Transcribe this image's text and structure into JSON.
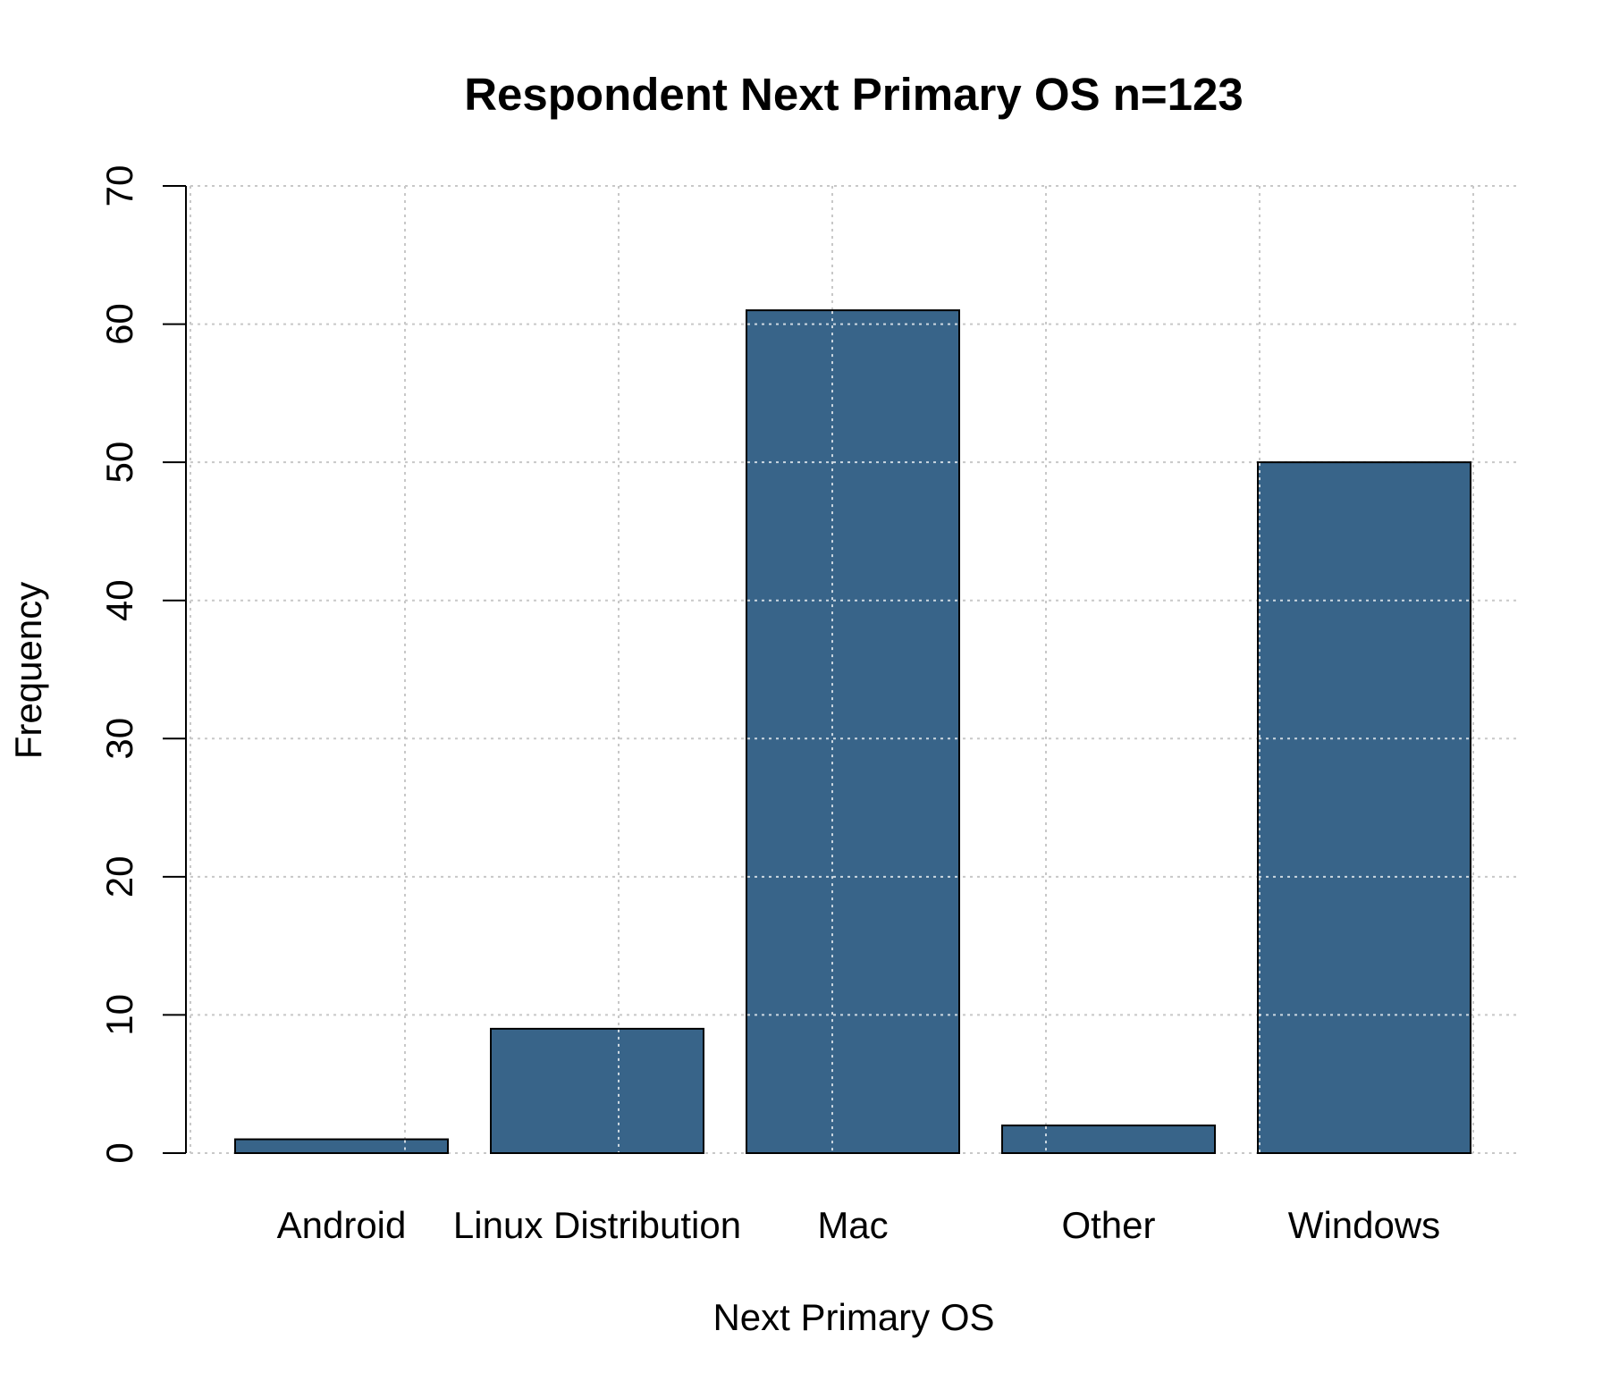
{
  "chart_data": {
    "type": "bar",
    "title": "Respondent Next Primary OS n=123",
    "xlabel": "Next Primary OS",
    "ylabel": "Frequency",
    "categories": [
      "Android",
      "Linux Distribution",
      "Mac",
      "Other",
      "Windows"
    ],
    "values": [
      1,
      9,
      61,
      2,
      50
    ],
    "ylim": [
      0,
      70
    ],
    "yticks": [
      0,
      10,
      20,
      30,
      40,
      50,
      60,
      70
    ],
    "grid": true,
    "bar_color": "#386489"
  }
}
